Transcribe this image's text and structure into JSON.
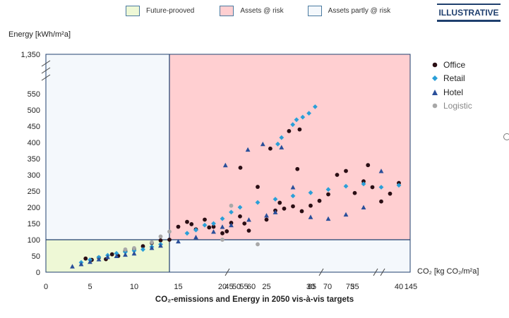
{
  "badge": "ILLUSTRATIVE",
  "zones_legend": [
    {
      "label": "Future-prooved",
      "color": "#eef8d6"
    },
    {
      "label": "Assets @ risk",
      "color": "#ffcfd1"
    },
    {
      "label": "Assets partly @ risk",
      "color": "#f4f8fc"
    }
  ],
  "chart_data": {
    "type": "scatter",
    "title": "",
    "subtitle": "CO₂-emissions and Energy in 2050 vis-à-vis targets",
    "xlabel": "CO₂ [kg CO₂/m²a]",
    "ylabel": "Energy [kWh/m²a]",
    "x_ticks": [
      "0",
      "5",
      "10",
      "15",
      "20",
      "25",
      "30",
      "35",
      "40",
      "45",
      "50",
      "55",
      "60",
      "65",
      "70",
      "75",
      "145"
    ],
    "y_ticks": [
      "0",
      "50",
      "100",
      "150",
      "200",
      "250",
      "300",
      "350",
      "400",
      "450",
      "500",
      "550",
      "1,350"
    ],
    "axis_breaks": "x-axis broken after 40, 60, 70 and 80; y-axis broken between 550 and 1,350",
    "zones": {
      "co2_threshold": 14,
      "energy_threshold": 100
    },
    "legend_placement": "right",
    "series": [
      {
        "name": "Office",
        "marker": "circle",
        "color": "#2a0e14",
        "points": [
          [
            4.5,
            42
          ],
          [
            5.2,
            38
          ],
          [
            6,
            45
          ],
          [
            6.8,
            40
          ],
          [
            7.5,
            55
          ],
          [
            8.2,
            50
          ],
          [
            9,
            65
          ],
          [
            10,
            72
          ],
          [
            11,
            80
          ],
          [
            12,
            90
          ],
          [
            13,
            98
          ],
          [
            14,
            100
          ],
          [
            15,
            140
          ],
          [
            16,
            155
          ],
          [
            16.5,
            148
          ],
          [
            17,
            132
          ],
          [
            18,
            162
          ],
          [
            18.5,
            138
          ],
          [
            19,
            140
          ],
          [
            20,
            120
          ],
          [
            20.5,
            126
          ],
          [
            21,
            152
          ],
          [
            22,
            172
          ],
          [
            22.5,
            150
          ],
          [
            23,
            128
          ],
          [
            24,
            263
          ],
          [
            25,
            162
          ],
          [
            26,
            190
          ],
          [
            26.5,
            214
          ],
          [
            27,
            196
          ],
          [
            28,
            203
          ],
          [
            28.5,
            318
          ],
          [
            29,
            188
          ],
          [
            30,
            205
          ],
          [
            31,
            220
          ],
          [
            32,
            240
          ],
          [
            33,
            300
          ],
          [
            34,
            312
          ],
          [
            35,
            244
          ],
          [
            36,
            280
          ],
          [
            36.5,
            330
          ],
          [
            37,
            262
          ],
          [
            38,
            218
          ],
          [
            39,
            242
          ],
          [
            40,
            275
          ],
          [
            45,
            322
          ],
          [
            53,
            381
          ],
          [
            58,
            435
          ],
          [
            61,
            440
          ]
        ]
      },
      {
        "name": "Retail",
        "marker": "diamond",
        "color": "#2a9fd8",
        "points": [
          [
            4,
            30
          ],
          [
            5,
            38
          ],
          [
            6,
            46
          ],
          [
            7,
            52
          ],
          [
            8,
            58
          ],
          [
            9,
            62
          ],
          [
            10,
            66
          ],
          [
            11,
            70
          ],
          [
            12,
            78
          ],
          [
            13,
            86
          ],
          [
            16,
            120
          ],
          [
            17,
            130
          ],
          [
            18,
            145
          ],
          [
            19,
            150
          ],
          [
            20,
            165
          ],
          [
            21,
            185
          ],
          [
            22,
            200
          ],
          [
            24,
            215
          ],
          [
            26,
            225
          ],
          [
            28,
            235
          ],
          [
            30,
            245
          ],
          [
            32,
            255
          ],
          [
            34,
            265
          ],
          [
            36,
            272
          ],
          [
            38,
            262
          ],
          [
            40,
            268
          ],
          [
            55,
            395
          ],
          [
            56,
            415
          ],
          [
            59,
            455
          ],
          [
            60,
            470
          ],
          [
            62,
            478
          ],
          [
            64,
            490
          ],
          [
            66,
            510
          ]
        ]
      },
      {
        "name": "Hotel",
        "marker": "triangle",
        "color": "#2a4f9a",
        "points": [
          [
            3,
            18
          ],
          [
            4,
            25
          ],
          [
            5,
            32
          ],
          [
            6,
            40
          ],
          [
            7,
            47
          ],
          [
            8,
            50
          ],
          [
            9,
            54
          ],
          [
            10,
            58
          ],
          [
            12,
            75
          ],
          [
            13,
            82
          ],
          [
            15,
            95
          ],
          [
            17,
            108
          ],
          [
            19,
            125
          ],
          [
            20,
            140
          ],
          [
            21,
            145
          ],
          [
            23,
            162
          ],
          [
            25,
            175
          ],
          [
            26,
            185
          ],
          [
            28,
            262
          ],
          [
            30,
            170
          ],
          [
            32,
            165
          ],
          [
            34,
            178
          ],
          [
            36,
            200
          ],
          [
            38,
            312
          ],
          [
            41,
            330
          ],
          [
            47,
            378
          ],
          [
            51,
            395
          ],
          [
            56,
            385
          ]
        ]
      },
      {
        "name": "Logistic",
        "marker": "circle",
        "color": "#a8a8a8",
        "points": [
          [
            9,
            70
          ],
          [
            10,
            74
          ],
          [
            12,
            92
          ],
          [
            13,
            110
          ],
          [
            14,
            125
          ],
          [
            20,
            100
          ],
          [
            21,
            205
          ],
          [
            24,
            86
          ]
        ]
      }
    ]
  }
}
